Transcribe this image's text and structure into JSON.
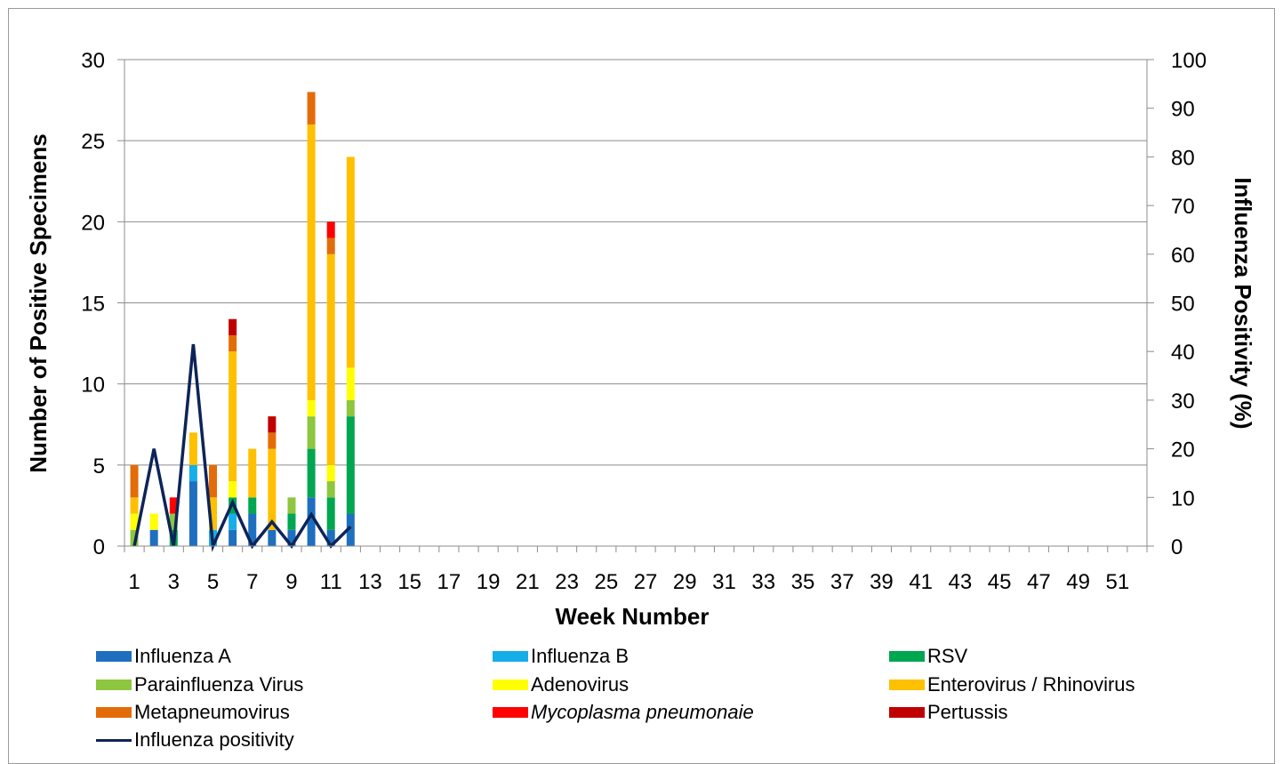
{
  "chart_data": {
    "type": "bar",
    "stacked": true,
    "xlabel": "Week Number",
    "ylabel": "Number of Positive Specimens",
    "y2label": "Influenza Positivity (%)",
    "ylim": [
      0,
      30
    ],
    "y2lim": [
      0,
      100
    ],
    "yticks": [
      "0",
      "5",
      "10",
      "15",
      "20",
      "25",
      "30"
    ],
    "y2ticks": [
      "0",
      "10",
      "20",
      "30",
      "40",
      "50",
      "60",
      "70",
      "80",
      "90",
      "100"
    ],
    "weeks": 52,
    "xtick_labels": [
      "1",
      "3",
      "5",
      "7",
      "9",
      "11",
      "13",
      "15",
      "17",
      "19",
      "21",
      "23",
      "25",
      "27",
      "29",
      "31",
      "33",
      "35",
      "37",
      "39",
      "41",
      "43",
      "45",
      "47",
      "49",
      "51"
    ],
    "grid": true,
    "legend_position": "bottom",
    "series": [
      {
        "name": "Influenza A",
        "color": "#1f6fc0",
        "values": [
          0,
          1,
          0,
          4,
          0,
          1,
          2,
          1,
          1,
          3,
          1,
          2
        ]
      },
      {
        "name": "Influenza B",
        "color": "#15aee8",
        "values": [
          0,
          0,
          0,
          1,
          1,
          1,
          0,
          0,
          0,
          0,
          0,
          0
        ]
      },
      {
        "name": "RSV",
        "color": "#00a650",
        "values": [
          0,
          0,
          1,
          0,
          0,
          1,
          1,
          0,
          1,
          3,
          2,
          6
        ]
      },
      {
        "name": "Parainfluenza Virus",
        "color": "#8dc63f",
        "values": [
          1,
          0,
          1,
          0,
          0,
          0,
          0,
          0,
          1,
          2,
          1,
          1
        ]
      },
      {
        "name": "Adenovirus",
        "color": "#ffff00",
        "values": [
          1,
          1,
          0,
          0,
          0,
          1,
          0,
          0,
          0,
          1,
          1,
          2
        ]
      },
      {
        "name": "Enterovirus / Rhinovirus",
        "color": "#ffc000",
        "values": [
          1,
          0,
          0,
          2,
          2,
          8,
          3,
          5,
          0,
          17,
          13,
          13
        ]
      },
      {
        "name": "Metapneumovirus",
        "color": "#e36c09",
        "values": [
          2,
          0,
          0,
          0,
          2,
          1,
          0,
          1,
          0,
          2,
          1,
          0
        ]
      },
      {
        "name": "Mycoplasma pneumonaie",
        "color": "#ff0000",
        "values": [
          0,
          0,
          1,
          0,
          0,
          0,
          0,
          0,
          0,
          0,
          1,
          0
        ]
      },
      {
        "name": "Pertussis",
        "color": "#c00000",
        "values": [
          0,
          0,
          0,
          0,
          0,
          1,
          0,
          1,
          0,
          0,
          0,
          0
        ]
      }
    ],
    "line_series": {
      "name": "Influenza positivity",
      "color": "#0d2459",
      "axis": "right",
      "values": [
        0,
        20,
        0,
        41.5,
        0,
        9,
        0,
        5,
        0,
        6.5,
        0,
        4
      ]
    }
  },
  "legend": [
    {
      "label": "Influenza A",
      "color": "#1f6fc0",
      "italic": false
    },
    {
      "label": "Influenza B",
      "color": "#15aee8",
      "italic": false
    },
    {
      "label": "RSV",
      "color": "#00a650",
      "italic": false
    },
    {
      "label": "Parainfluenza Virus",
      "color": "#8dc63f",
      "italic": false
    },
    {
      "label": "Adenovirus",
      "color": "#ffff00",
      "italic": false
    },
    {
      "label": "Enterovirus / Rhinovirus",
      "color": "#ffc000",
      "italic": false
    },
    {
      "label": "Metapneumovirus",
      "color": "#e36c09",
      "italic": false
    },
    {
      "label": "Mycoplasma pneumonaie",
      "color": "#ff0000",
      "italic": true
    },
    {
      "label": "Pertussis",
      "color": "#c00000",
      "italic": false
    },
    {
      "label": "Influenza positivity",
      "color": "#0d2459",
      "italic": false,
      "line": true
    }
  ]
}
